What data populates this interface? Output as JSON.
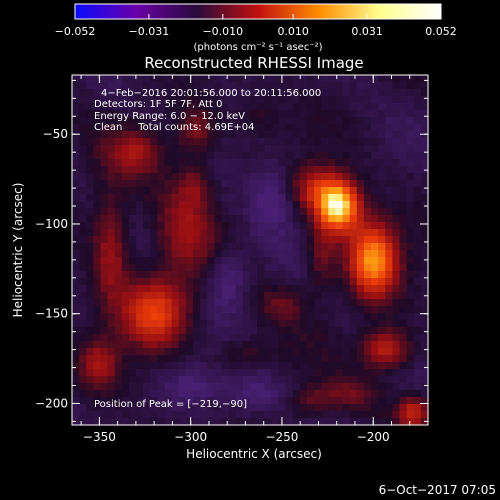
{
  "chart_data": {
    "type": "heatmap",
    "title": "Reconstructed RHESSI Image",
    "xlabel": "Heliocentric X (arcsec)",
    "ylabel": "Heliocentric Y (arcsec)",
    "xlim": [
      -365,
      -170
    ],
    "ylim": [
      -212,
      -17
    ],
    "x_ticks": [
      -350,
      -300,
      -250,
      -200
    ],
    "y_ticks": [
      -50,
      -100,
      -150,
      -200
    ],
    "x_tick_labels": [
      "−350",
      "−300",
      "−250",
      "−200"
    ],
    "y_tick_labels": [
      "−50",
      "−100",
      "−150",
      "−200"
    ],
    "colorbar": {
      "min": -0.052,
      "max": 0.052,
      "ticks": [
        -0.052,
        -0.031,
        -0.01,
        0.01,
        0.031,
        0.052
      ],
      "tick_labels": [
        "−0.052",
        "−0.031",
        "−0.010",
        "0.010",
        "0.031",
        "0.052"
      ],
      "unit_label": "(photons cm⁻² s⁻¹ asec⁻²)",
      "colors": [
        "#0a0aff",
        "#6a00a8",
        "#2a0a3a",
        "#c01010",
        "#ff8c00",
        "#ffff90",
        "#ffffff"
      ]
    },
    "annotations": {
      "time": "4−Feb−2016 20:01:56.000 to 20:11:56.000",
      "detectors": "Detectors: 1F 5F 7F, Att 0",
      "energy": "Energy Range: 6.0 − 12.0 keV",
      "clean": "Clean     Total counts: 4.69E+04",
      "peak": "Position of Peak = [−219,−90]"
    },
    "peak_position": [
      -219,
      -90
    ],
    "blobs": [
      {
        "x": -219,
        "y": -90,
        "sx": 8,
        "sy": 10,
        "a": 1.0
      },
      {
        "x": -200,
        "y": -120,
        "sx": 9,
        "sy": 14,
        "a": 0.78
      },
      {
        "x": -232,
        "y": -80,
        "sx": 9,
        "sy": 9,
        "a": 0.35
      },
      {
        "x": -193,
        "y": -170,
        "sx": 9,
        "sy": 8,
        "a": 0.45
      },
      {
        "x": -320,
        "y": -150,
        "sx": 12,
        "sy": 13,
        "a": 0.55
      },
      {
        "x": -344,
        "y": -115,
        "sx": 7,
        "sy": 22,
        "a": 0.32
      },
      {
        "x": -350,
        "y": -178,
        "sx": 7,
        "sy": 9,
        "a": 0.3
      },
      {
        "x": -330,
        "y": -60,
        "sx": 11,
        "sy": 9,
        "a": 0.28
      },
      {
        "x": -297,
        "y": -48,
        "sx": 7,
        "sy": 9,
        "a": 0.26
      },
      {
        "x": -303,
        "y": -103,
        "sx": 11,
        "sy": 20,
        "a": 0.28
      },
      {
        "x": -298,
        "y": -78,
        "sx": 6,
        "sy": 8,
        "a": 0.18
      },
      {
        "x": -228,
        "y": -118,
        "sx": 6,
        "sy": 14,
        "a": 0.22
      },
      {
        "x": -250,
        "y": -145,
        "sx": 9,
        "sy": 7,
        "a": 0.18
      },
      {
        "x": -270,
        "y": -172,
        "sx": 10,
        "sy": 6,
        "a": 0.14
      },
      {
        "x": -215,
        "y": -195,
        "sx": 12,
        "sy": 6,
        "a": 0.2
      },
      {
        "x": -178,
        "y": -205,
        "sx": 6,
        "sy": 6,
        "a": 0.42
      },
      {
        "x": -262,
        "y": -40,
        "sx": 10,
        "sy": 7,
        "a": 0.1
      },
      {
        "x": -235,
        "y": -200,
        "sx": 8,
        "sy": 6,
        "a": 0.15
      },
      {
        "x": -280,
        "y": -130,
        "sx": 8,
        "sy": 12,
        "a": -0.2
      },
      {
        "x": -255,
        "y": -85,
        "sx": 9,
        "sy": 14,
        "a": -0.2
      },
      {
        "x": -265,
        "y": -195,
        "sx": 12,
        "sy": 8,
        "a": -0.15
      },
      {
        "x": -300,
        "y": -190,
        "sx": 12,
        "sy": 8,
        "a": -0.12
      }
    ]
  },
  "footer": {
    "date": "6−Oct−2017 07:05"
  }
}
